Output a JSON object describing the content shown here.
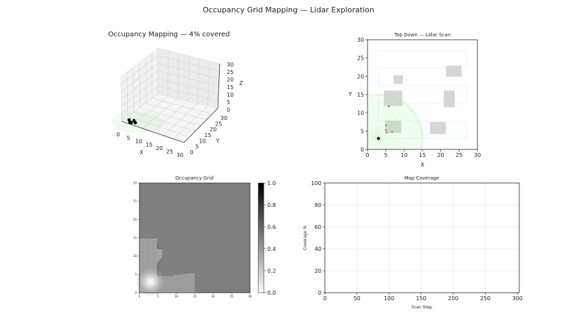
{
  "suptitle": "Occupancy Grid Mapping — Lidar Exploration",
  "chart_data": [
    {
      "type": "scatter3d",
      "title": "Occupancy Mapping — 4% covered",
      "xlabel": "X",
      "ylabel": "Y",
      "zlabel": "Z",
      "xlim": [
        0,
        30
      ],
      "ylim": [
        0,
        30
      ],
      "zlim": [
        0,
        30
      ],
      "xticks": [
        "0",
        "5",
        "10",
        "15",
        "20",
        "25",
        "30"
      ],
      "yticks": [
        "0",
        "5",
        "10",
        "15",
        "20",
        "25",
        "30"
      ],
      "zticks": [
        "0",
        "5",
        "10",
        "15",
        "20",
        "25",
        "30"
      ],
      "grid": true
    },
    {
      "type": "scatter",
      "title": "Top Down — Lidar Scan",
      "xlabel": "X",
      "ylabel": "Y",
      "xlim": [
        0,
        30
      ],
      "ylim": [
        0,
        30
      ],
      "xticks": [
        "0",
        "5",
        "10",
        "15",
        "20",
        "25",
        "30"
      ],
      "yticks": [
        "0",
        "5",
        "10",
        "15",
        "20",
        "25",
        "30"
      ],
      "robot": [
        3,
        3
      ],
      "scan_range": 12,
      "obstacles": [
        [
          7.1,
          17.9,
          9.7,
          20.3
        ],
        [
          4.5,
          11.9,
          9.5,
          16.1
        ],
        [
          4.9,
          4.5,
          9.2,
          7.9
        ],
        [
          17.1,
          4.2,
          21.4,
          7.5
        ],
        [
          20.8,
          11.5,
          23.8,
          16.1
        ],
        [
          21.4,
          19.9,
          25.7,
          22.9
        ]
      ],
      "path": [
        [
          3,
          27
        ],
        [
          27,
          27
        ],
        [
          27,
          22.3
        ],
        [
          3,
          22.3
        ],
        [
          3,
          17.4
        ],
        [
          27,
          17.4
        ],
        [
          27,
          12.6
        ],
        [
          3,
          12.6
        ],
        [
          3,
          7.7
        ],
        [
          27,
          7.7
        ],
        [
          27,
          3
        ],
        [
          5,
          3
        ]
      ],
      "hits": [
        [
          5.8,
          11.8
        ],
        [
          5,
          6.6
        ],
        [
          5,
          5.3
        ],
        [
          5.2,
          4.6
        ],
        [
          6.7,
          4.8
        ]
      ],
      "colors": {
        "obstacle": "#d6d6d6",
        "path": "#e0fbfb",
        "scan": "#90ee90",
        "hit": "#cc4444",
        "robot": "#000000"
      }
    },
    {
      "type": "heatmap",
      "title": "Occupancy Grid",
      "xlim": [
        0,
        30
      ],
      "ylim": [
        0,
        30
      ],
      "xticks": [
        "0",
        "5",
        "10",
        "15",
        "20",
        "25",
        "30"
      ],
      "yticks": [
        "0",
        "5",
        "10",
        "15",
        "20",
        "25",
        "30"
      ],
      "colorbar": {
        "range": [
          0,
          1
        ],
        "ticks": [
          "0.0",
          "0.2",
          "0.4",
          "0.6",
          "0.8",
          "1.0"
        ],
        "cmap": "gray_r"
      },
      "unknown_value": 0.5
    },
    {
      "type": "line",
      "title": "Map Coverage",
      "xlabel": "Scan Step",
      "ylabel": "Coverage %",
      "xlim": [
        0,
        303
      ],
      "ylim": [
        0,
        100
      ],
      "xticks": [
        "0",
        "50",
        "100",
        "150",
        "200",
        "250",
        "300"
      ],
      "yticks": [
        "0",
        "20",
        "40",
        "60",
        "80",
        "100"
      ],
      "grid": true,
      "x": [],
      "y": []
    }
  ]
}
